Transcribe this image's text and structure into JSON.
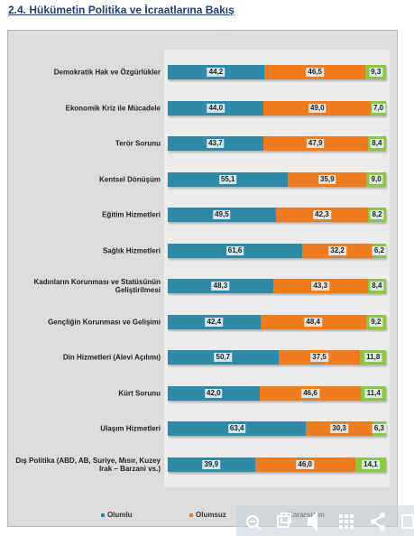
{
  "chart_data": {
    "type": "stacked-bar-horizontal",
    "title": "2.4. Hükümetin Politika ve İcraatlarına Bakış",
    "categories": [
      "Demokratik Hak ve Özgürlükler",
      "Ekonomik Kriz ile Mücadele",
      "Terör Sorunu",
      "Kentsel Dönüşüm",
      "Eğitim Hizmetleri",
      "Sağlık Hizmetleri",
      "Kadınların Korunması ve Statüsünün Geliştirilmesi",
      "Gençliğin Korunması ve Gelişimi",
      "Din Hizmetleri (Alevi Açılımı)",
      "Kürt Sorunu",
      "Ulaşım Hizmetleri",
      "Dış Politika (ABD, AB, Suriye, Mısır, Kuzey Irak – Barzani vs.)"
    ],
    "series": [
      {
        "name": "Olumlu",
        "color": "#2f8aa8",
        "values": [
          44.2,
          44.0,
          43.7,
          55.1,
          49.5,
          61.6,
          48.3,
          42.4,
          50.7,
          42.0,
          63.4,
          39.9
        ],
        "value_labels": [
          "44,2",
          "44,0",
          "43,7",
          "55,1",
          "49,5",
          "61,6",
          "48,3",
          "42,4",
          "50,7",
          "42,0",
          "63,4",
          "39,9"
        ]
      },
      {
        "name": "Olumsuz",
        "color": "#ef7d1f",
        "values": [
          46.5,
          49.0,
          47.9,
          35.9,
          42.3,
          32.2,
          43.3,
          48.4,
          37.5,
          46.6,
          30.3,
          46.0
        ],
        "value_labels": [
          "46,5",
          "49,0",
          "47,9",
          "35,9",
          "42,3",
          "32,2",
          "43,3",
          "48,4",
          "37,5",
          "46,6",
          "30,3",
          "46,0"
        ]
      },
      {
        "name": "Kararsızım",
        "color": "#8dc641",
        "values": [
          9.3,
          7.0,
          8.4,
          9.0,
          8.2,
          6.2,
          8.4,
          9.2,
          11.8,
          11.4,
          6.3,
          14.1
        ],
        "value_labels": [
          "9,3",
          "7,0",
          "8,4",
          "9,0",
          "8,2",
          "6,2",
          "8,4",
          "9,2",
          "11,8",
          "11,4",
          "6,3",
          "14,1"
        ]
      }
    ]
  }
}
